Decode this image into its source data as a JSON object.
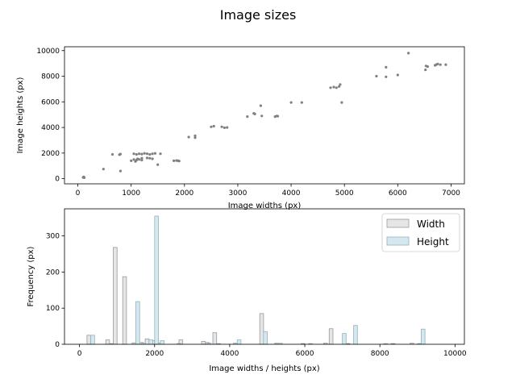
{
  "figure": {
    "title": "Image sizes",
    "colors": {
      "scatter": "#808080",
      "width_bar": "#e6e6e6",
      "width_edge": "#9a9a9a",
      "height_bar": "#d6e8ee",
      "height_edge": "#8fb3c2"
    }
  },
  "chart_data": [
    {
      "type": "scatter",
      "xlabel": "Image widths (px)",
      "ylabel": "Image heights (px)",
      "xlim": [
        -250,
        7250
      ],
      "ylim": [
        -400,
        10300
      ],
      "xticks": [
        0,
        1000,
        2000,
        3000,
        4000,
        5000,
        6000,
        7000
      ],
      "yticks": [
        0,
        2000,
        4000,
        6000,
        8000,
        10000
      ],
      "grid": false,
      "points": [
        [
          100,
          100
        ],
        [
          110,
          150
        ],
        [
          120,
          80
        ],
        [
          480,
          750
        ],
        [
          650,
          1900
        ],
        [
          800,
          1920
        ],
        [
          780,
          1870
        ],
        [
          800,
          600
        ],
        [
          1000,
          1400
        ],
        [
          1050,
          1500
        ],
        [
          1080,
          1350
        ],
        [
          1100,
          1450
        ],
        [
          1120,
          1550
        ],
        [
          1150,
          1500
        ],
        [
          1200,
          1450
        ],
        [
          1050,
          1950
        ],
        [
          1100,
          1900
        ],
        [
          1150,
          1950
        ],
        [
          1200,
          1920
        ],
        [
          1250,
          1980
        ],
        [
          1300,
          1950
        ],
        [
          1350,
          1900
        ],
        [
          1400,
          1950
        ],
        [
          1450,
          1980
        ],
        [
          1200,
          1600
        ],
        [
          1300,
          1620
        ],
        [
          1350,
          1600
        ],
        [
          1400,
          1550
        ],
        [
          1550,
          1950
        ],
        [
          1500,
          1100
        ],
        [
          1800,
          1400
        ],
        [
          1850,
          1420
        ],
        [
          1880,
          1400
        ],
        [
          1900,
          1380
        ],
        [
          2080,
          3250
        ],
        [
          2200,
          3200
        ],
        [
          2200,
          3350
        ],
        [
          2500,
          4050
        ],
        [
          2550,
          4100
        ],
        [
          2700,
          4050
        ],
        [
          2750,
          3980
        ],
        [
          2800,
          4000
        ],
        [
          3180,
          4850
        ],
        [
          3300,
          5100
        ],
        [
          3320,
          5050
        ],
        [
          3430,
          5700
        ],
        [
          3450,
          4900
        ],
        [
          3700,
          4850
        ],
        [
          3730,
          4900
        ],
        [
          3750,
          4880
        ],
        [
          4000,
          5950
        ],
        [
          4200,
          5950
        ],
        [
          4740,
          7100
        ],
        [
          4800,
          7150
        ],
        [
          4850,
          7100
        ],
        [
          4900,
          7200
        ],
        [
          4920,
          7350
        ],
        [
          4950,
          5950
        ],
        [
          5600,
          8000
        ],
        [
          5780,
          7950
        ],
        [
          5780,
          8700
        ],
        [
          6000,
          8100
        ],
        [
          6200,
          9800
        ],
        [
          6520,
          8500
        ],
        [
          6530,
          8800
        ],
        [
          6560,
          8750
        ],
        [
          6700,
          8850
        ],
        [
          6720,
          8900
        ],
        [
          6750,
          8950
        ],
        [
          6800,
          8900
        ],
        [
          6900,
          8900
        ]
      ]
    },
    {
      "type": "bar",
      "xlabel": "Image widths / heights (px)",
      "ylabel": "Frequency (px)",
      "xlim": [
        -400,
        10250
      ],
      "ylim": [
        0,
        375
      ],
      "xticks": [
        0,
        2000,
        4000,
        6000,
        8000,
        10000
      ],
      "yticks": [
        0,
        100,
        200,
        300
      ],
      "legend": "top-right",
      "bin_width": 100,
      "series": [
        {
          "name": "Width",
          "bins": [
            [
              200,
              25
            ],
            [
              700,
              12
            ],
            [
              900,
              268
            ],
            [
              1150,
              187
            ],
            [
              1400,
              4
            ],
            [
              1600,
              5
            ],
            [
              1750,
              15
            ],
            [
              1900,
              10
            ],
            [
              2050,
              4
            ],
            [
              2650,
              12
            ],
            [
              3250,
              8
            ],
            [
              3350,
              5
            ],
            [
              3550,
              32
            ],
            [
              4100,
              3
            ],
            [
              4800,
              85
            ],
            [
              5200,
              3
            ],
            [
              5900,
              2
            ],
            [
              6500,
              3
            ],
            [
              6650,
              43
            ],
            [
              7100,
              2
            ],
            [
              8300,
              2
            ],
            [
              8800,
              3
            ]
          ]
        },
        {
          "name": "Height",
          "bins": [
            [
              300,
              25
            ],
            [
              800,
              2
            ],
            [
              1500,
              118
            ],
            [
              1650,
              3
            ],
            [
              1850,
              12
            ],
            [
              2000,
              355
            ],
            [
              2150,
              10
            ],
            [
              2600,
              2
            ],
            [
              3400,
              3
            ],
            [
              3650,
              2
            ],
            [
              4200,
              12
            ],
            [
              4900,
              35
            ],
            [
              5300,
              3
            ],
            [
              6100,
              2
            ],
            [
              7000,
              30
            ],
            [
              7300,
              52
            ],
            [
              8100,
              2
            ],
            [
              9000,
              2
            ],
            [
              9100,
              42
            ]
          ]
        }
      ]
    }
  ]
}
